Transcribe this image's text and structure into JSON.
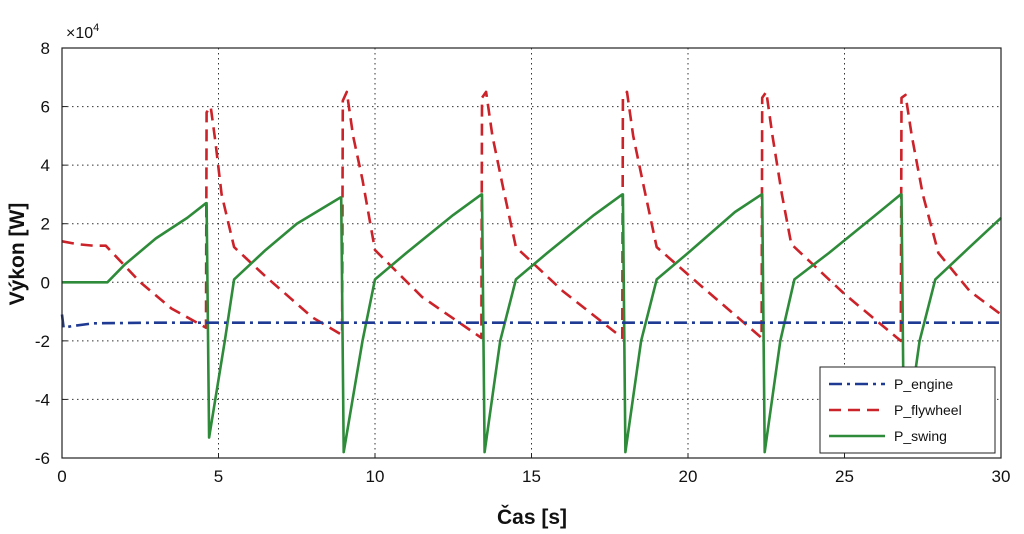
{
  "chart_data": {
    "type": "line",
    "title": "",
    "xlabel": "Čas [s]",
    "ylabel": "Výkon [W]",
    "y_multiplier": "×10",
    "y_multiplier_exp": "4",
    "xlim": [
      0,
      30
    ],
    "ylim": [
      -6,
      8
    ],
    "x_ticks": [
      0,
      5,
      10,
      15,
      20,
      25,
      30
    ],
    "y_ticks": [
      -6,
      -4,
      -2,
      0,
      2,
      4,
      6,
      8
    ],
    "grid": true,
    "legend_position": "bottom-right",
    "series": [
      {
        "name": "P_engine",
        "color": "#1f3a93",
        "style": "dashdot",
        "x": [
          0,
          0.05,
          0.3,
          1.0,
          3,
          30
        ],
        "y": [
          -1.1,
          -1.55,
          -1.5,
          -1.4,
          -1.38,
          -1.38
        ]
      },
      {
        "name": "P_flywheel",
        "color": "#cc2229",
        "style": "dashed",
        "x": [
          0,
          0.5,
          1.0,
          1.4,
          2.5,
          3.5,
          4.6,
          4.62,
          4.75,
          4.9,
          5.1,
          5.5,
          6.5,
          8.0,
          8.95,
          8.97,
          9.1,
          9.3,
          9.6,
          10.0,
          11.5,
          13.4,
          13.42,
          13.55,
          13.75,
          14.1,
          14.5,
          16.0,
          17.9,
          17.92,
          18.05,
          18.25,
          18.6,
          19.0,
          20.5,
          22.35,
          22.37,
          22.5,
          22.7,
          23.0,
          23.3,
          25.0,
          26.8,
          26.82,
          26.95,
          27.15,
          27.5,
          28.0,
          29.0,
          30.0
        ],
        "y": [
          1.4,
          1.3,
          1.25,
          1.25,
          0.0,
          -0.9,
          -1.55,
          5.8,
          6.0,
          4.8,
          3.0,
          1.2,
          0.2,
          -1.2,
          -1.8,
          6.2,
          6.5,
          5.0,
          3.5,
          1.1,
          -0.5,
          -1.9,
          6.3,
          6.5,
          5.0,
          3.2,
          1.2,
          -0.3,
          -1.9,
          6.3,
          6.5,
          5.0,
          3.2,
          1.2,
          -0.2,
          -1.9,
          6.3,
          6.5,
          5.0,
          3.0,
          1.3,
          -0.4,
          -2.0,
          6.3,
          6.4,
          5.0,
          3.0,
          1.0,
          -0.3,
          -1.1
        ]
      },
      {
        "name": "P_swing",
        "color": "#2e8b3a",
        "style": "solid",
        "x": [
          0,
          1.45,
          2.0,
          3.0,
          4.0,
          4.6,
          4.62,
          4.7,
          5.2,
          5.5,
          6.5,
          7.5,
          8.9,
          8.92,
          9.0,
          9.6,
          10.0,
          11.0,
          12.5,
          13.4,
          13.42,
          13.5,
          14.0,
          14.5,
          15.5,
          17.0,
          17.9,
          17.92,
          18.0,
          18.5,
          19.0,
          20.0,
          21.5,
          22.35,
          22.37,
          22.45,
          22.95,
          23.4,
          24.5,
          26.0,
          26.8,
          26.82,
          26.9,
          27.4,
          27.9,
          29.0,
          30.0
        ],
        "y": [
          0,
          0,
          0.6,
          1.5,
          2.2,
          2.7,
          2.7,
          -5.3,
          -2.0,
          0.1,
          1.1,
          2.0,
          2.9,
          2.9,
          -5.8,
          -2.0,
          0.1,
          1.0,
          2.3,
          3.0,
          3.0,
          -5.8,
          -2.0,
          0.1,
          1.0,
          2.3,
          3.0,
          3.0,
          -5.8,
          -2.0,
          0.1,
          1.0,
          2.4,
          3.0,
          3.0,
          -5.8,
          -2.0,
          0.1,
          1.0,
          2.3,
          3.0,
          3.0,
          -5.8,
          -2.0,
          0.1,
          1.2,
          2.2
        ]
      }
    ]
  }
}
